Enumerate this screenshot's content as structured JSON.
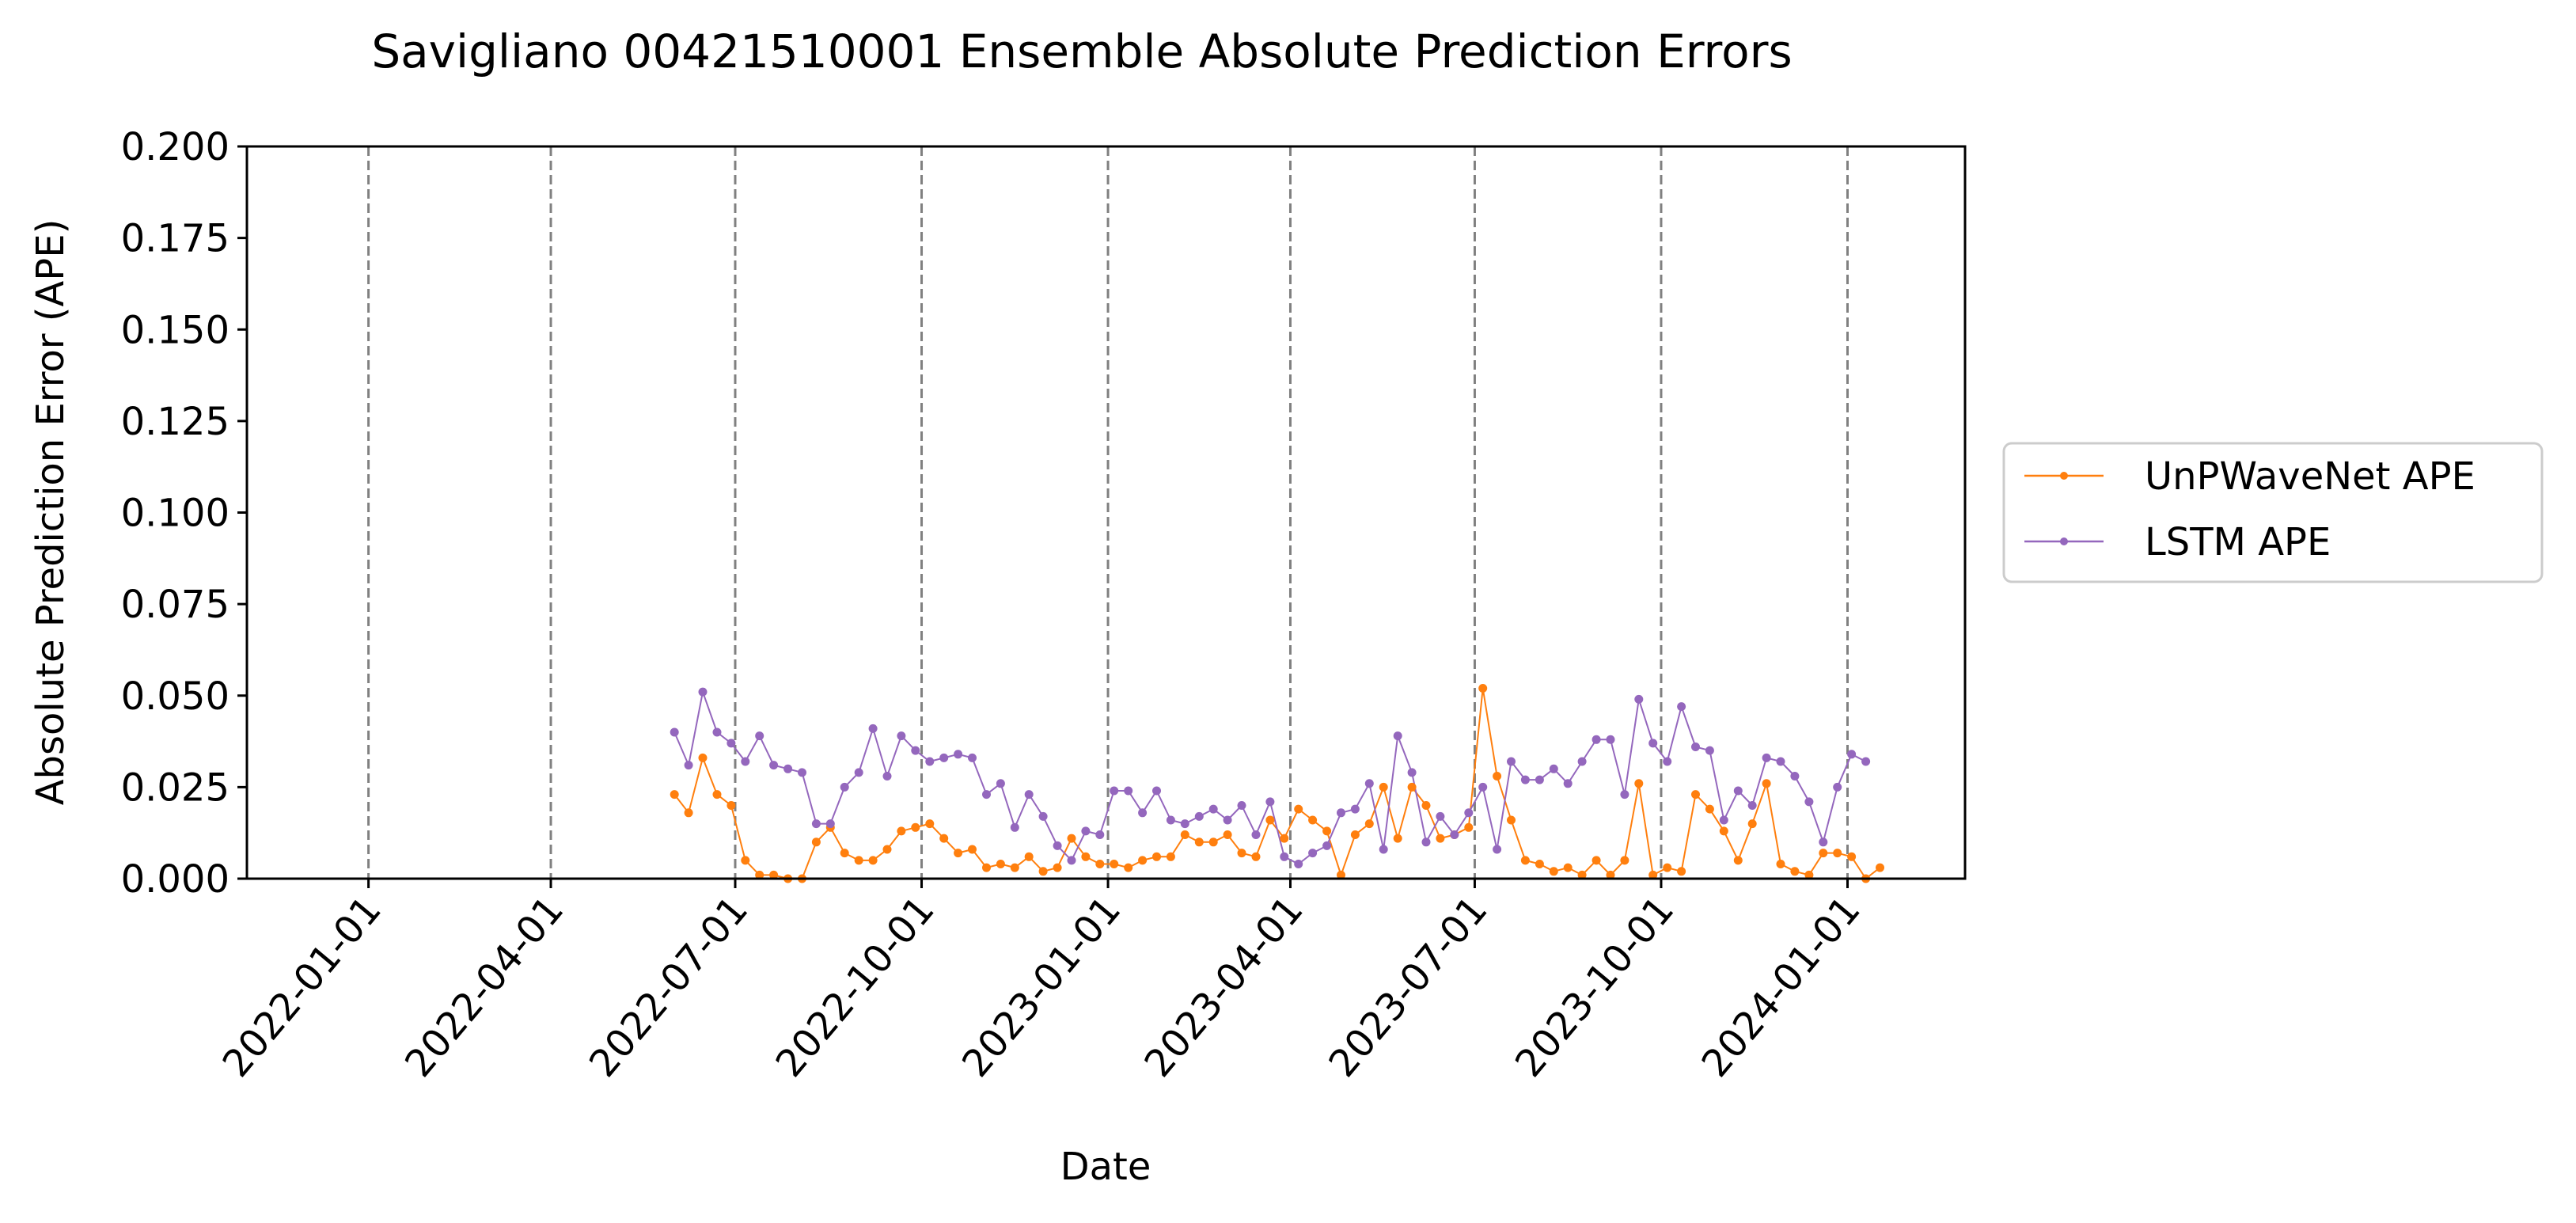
{
  "chart_data": {
    "type": "line",
    "title": "Savigliano 00421510001 Ensemble Absolute Prediction Errors",
    "xlabel": "Date",
    "ylabel": "Absolute Prediction Error (APE)",
    "ylim": [
      0,
      0.2
    ],
    "xlim": [
      "2021-11-02",
      "2024-02-28"
    ],
    "yticks": [
      0.0,
      0.025,
      0.05,
      0.075,
      0.1,
      0.125,
      0.15,
      0.175,
      0.2
    ],
    "ytick_labels": [
      "0.000",
      "0.025",
      "0.050",
      "0.075",
      "0.100",
      "0.125",
      "0.150",
      "0.175",
      "0.200"
    ],
    "xticks": [
      "2022-01-01",
      "2022-04-01",
      "2022-07-01",
      "2022-10-01",
      "2023-01-01",
      "2023-04-01",
      "2023-07-01",
      "2023-10-01",
      "2024-01-01"
    ],
    "vlines": [
      "2022-01-01",
      "2022-04-01",
      "2022-07-01",
      "2022-10-01",
      "2023-01-01",
      "2023-04-01",
      "2023-07-01",
      "2023-10-01",
      "2024-01-01"
    ],
    "legend_position": "center-right outside",
    "start_date": "2022-06-01",
    "step_days": 7,
    "series": [
      {
        "name": "UnPWaveNet APE",
        "color": "#ff7f0e",
        "values": [
          0.023,
          0.018,
          0.033,
          0.023,
          0.02,
          0.005,
          0.001,
          0.001,
          0.0,
          0.0,
          0.01,
          0.014,
          0.007,
          0.005,
          0.005,
          0.008,
          0.013,
          0.014,
          0.015,
          0.011,
          0.007,
          0.008,
          0.003,
          0.004,
          0.003,
          0.006,
          0.002,
          0.003,
          0.011,
          0.006,
          0.004,
          0.004,
          0.003,
          0.005,
          0.006,
          0.006,
          0.012,
          0.01,
          0.01,
          0.012,
          0.007,
          0.006,
          0.016,
          0.011,
          0.019,
          0.016,
          0.013,
          0.001,
          0.012,
          0.015,
          0.025,
          0.011,
          0.025,
          0.02,
          0.011,
          0.012,
          0.014,
          0.052,
          0.028,
          0.016,
          0.005,
          0.004,
          0.002,
          0.003,
          0.001,
          0.005,
          0.001,
          0.005,
          0.026,
          0.001,
          0.003,
          0.002,
          0.023,
          0.019,
          0.013,
          0.005,
          0.015,
          0.026,
          0.004,
          0.002,
          0.001,
          0.007,
          0.007,
          0.006,
          0.0,
          0.003
        ]
      },
      {
        "name": "LSTM APE",
        "color": "#9467bd",
        "values": [
          0.04,
          0.031,
          0.051,
          0.04,
          0.037,
          0.032,
          0.039,
          0.031,
          0.03,
          0.029,
          0.015,
          0.015,
          0.025,
          0.029,
          0.041,
          0.028,
          0.039,
          0.035,
          0.032,
          0.033,
          0.034,
          0.033,
          0.023,
          0.026,
          0.014,
          0.023,
          0.017,
          0.009,
          0.005,
          0.013,
          0.012,
          0.024,
          0.024,
          0.018,
          0.024,
          0.016,
          0.015,
          0.017,
          0.019,
          0.016,
          0.02,
          0.012,
          0.021,
          0.006,
          0.004,
          0.007,
          0.009,
          0.018,
          0.019,
          0.026,
          0.008,
          0.039,
          0.029,
          0.01,
          0.017,
          0.012,
          0.018,
          0.025,
          0.008,
          0.032,
          0.027,
          0.027,
          0.03,
          0.026,
          0.032,
          0.038,
          0.038,
          0.023,
          0.049,
          0.037,
          0.032,
          0.047,
          0.036,
          0.035,
          0.016,
          0.024,
          0.02,
          0.033,
          0.032,
          0.028,
          0.021,
          0.01,
          0.025,
          0.034,
          0.032
        ]
      }
    ]
  }
}
